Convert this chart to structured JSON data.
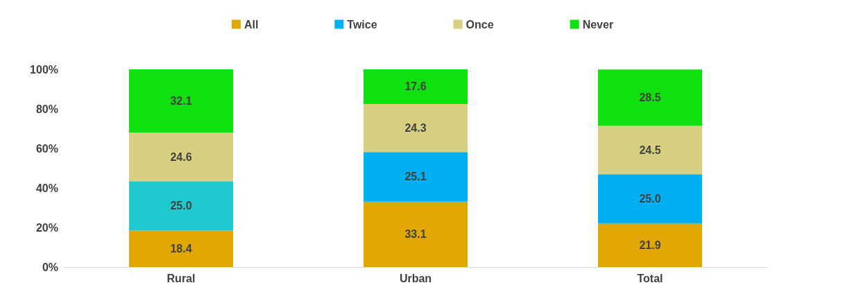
{
  "chart_data": {
    "type": "bar",
    "stacked": true,
    "categories": [
      "Rural",
      "Urban",
      "Total"
    ],
    "series": [
      {
        "name": "All",
        "color": "#e0a800",
        "values": [
          18.4,
          33.1,
          21.9
        ],
        "value_labels": [
          "18.4",
          "33.1",
          "21.9"
        ]
      },
      {
        "name": "Twice",
        "color": "#00b0f0",
        "colors": [
          "#20c8d0",
          "#00b0f0",
          "#00b0f0"
        ],
        "values": [
          25.0,
          25.1,
          25.0
        ],
        "value_labels": [
          "25.0",
          "25.1",
          "25.0"
        ]
      },
      {
        "name": "Once",
        "color": "#d8d080",
        "values": [
          24.6,
          24.3,
          24.5
        ],
        "value_labels": [
          "24.6",
          "24.3",
          "24.5"
        ]
      },
      {
        "name": "Never",
        "color": "#10e010",
        "values": [
          32.1,
          17.6,
          28.5
        ],
        "value_labels": [
          "32.1",
          "17.6",
          "28.5"
        ]
      }
    ],
    "ylim": [
      0,
      100
    ],
    "yticks": [
      {
        "value": 0,
        "label": "0%"
      },
      {
        "value": 20,
        "label": "20%"
      },
      {
        "value": 40,
        "label": "40%"
      },
      {
        "value": 60,
        "label": "60%"
      },
      {
        "value": 80,
        "label": "80%"
      },
      {
        "value": 100,
        "label": "100%"
      }
    ],
    "legend": "top",
    "grid": false
  }
}
